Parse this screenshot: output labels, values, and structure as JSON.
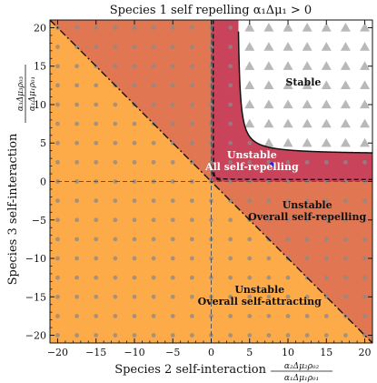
{
  "chart_data": {
    "type": "phase-diagram",
    "title": "Species 1 self repelling α₁Δμ₁ > 0",
    "xlabel": "Species 2 self-interaction",
    "xlabel_fraction": {
      "numerator": "α₂Δμ₂ρ₀₂",
      "denominator": "α₁Δμ₁ρ₀₁"
    },
    "ylabel": "Species 3 self-interaction",
    "ylabel_fraction": {
      "numerator": "α₃Δμ₃ρ₀₃",
      "denominator": "α₁Δμ₁ρ₀₁"
    },
    "xlim": [
      -21,
      21
    ],
    "ylim": [
      -21,
      21
    ],
    "xticks": [
      -20,
      -15,
      -10,
      -5,
      0,
      5,
      10,
      15,
      20
    ],
    "yticks": [
      -20,
      -15,
      -10,
      -5,
      0,
      5,
      10,
      15,
      20
    ],
    "regions": [
      {
        "label_lines": [
          "Stable"
        ],
        "color": "#ffffff",
        "text_color": "#111111",
        "label_at": [
          12,
          12.5
        ],
        "marker": "triangle"
      },
      {
        "label_lines": [
          "Unstable",
          "All self-repelling"
        ],
        "color": "#c9445a",
        "text_color": "#ffffff",
        "label_at": [
          5.3,
          3.0
        ],
        "marker": "dot"
      },
      {
        "label_lines": [
          "Unstable",
          "Overall self-repelling"
        ],
        "color": "#e07752",
        "text_color": "#111111",
        "label_at": [
          12.5,
          -3.5
        ],
        "marker": "dot"
      },
      {
        "label_lines": [
          "Unstable",
          "Overall self-attracting"
        ],
        "color": "#fdaa48",
        "text_color": "#111111",
        "label_at": [
          6.3,
          -14.5
        ],
        "marker": "dot"
      }
    ],
    "marked_point": {
      "x": 7.9,
      "y": 2.2,
      "color": "#1f2bd6"
    },
    "grid_spacing": 2.5
  }
}
